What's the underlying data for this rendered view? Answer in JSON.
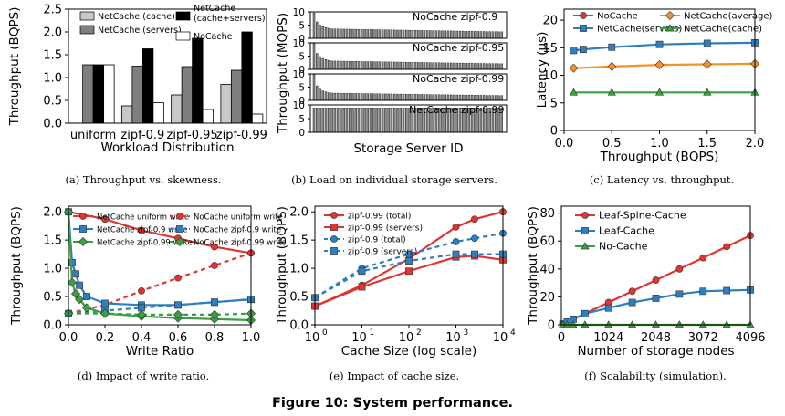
{
  "figure_title": "Figure 10: System performance.",
  "colors": {
    "red": "#e03530",
    "blue": "#2f7fc0",
    "orange": "#f4922a",
    "green": "#3aa040",
    "lightgray": "#c8c8c8",
    "darkgray": "#7f7f7f",
    "black": "#000000",
    "white": "#ffffff"
  },
  "chart_data": [
    {
      "id": "a",
      "type": "bar",
      "caption": "(a) Throughput vs. skewness.",
      "xlabel": "Workload Distribution",
      "ylabel": "Throughput (BQPS)",
      "ylim": [
        0,
        2.5
      ],
      "yticks": [
        "0.0",
        "0.5",
        "1.0",
        "1.5",
        "2.0",
        "2.5"
      ],
      "categories": [
        "uniform",
        "zipf-0.9",
        "zipf-0.95",
        "zipf-0.99"
      ],
      "series": [
        {
          "name": "NetCache (cache)",
          "color": "lightgray",
          "values": [
            0,
            0.38,
            0.62,
            0.85
          ]
        },
        {
          "name": "NetCache (servers)",
          "color": "darkgray",
          "values": [
            1.28,
            1.25,
            1.24,
            1.16
          ]
        },
        {
          "name": "NetCache (cache+servers)",
          "color": "black",
          "values": [
            1.28,
            1.63,
            1.86,
            2.0
          ]
        },
        {
          "name": "NoCache",
          "color": "white",
          "values": [
            1.28,
            0.45,
            0.3,
            0.2
          ]
        }
      ],
      "legend": [
        {
          "label": "NetCache (cache)",
          "color": "lightgray"
        },
        {
          "label": "NetCache (cache+servers)",
          "color": "black"
        },
        {
          "label": "NetCache (servers)",
          "color": "darkgray"
        },
        {
          "label": "NoCache",
          "color": "white"
        }
      ],
      "legend_position": "top"
    },
    {
      "id": "b",
      "type": "bar",
      "caption": "(b) Load on individual storage servers.",
      "xlabel": "Storage Server ID",
      "ylabel": "Throughput (MQPS)",
      "ylim": [
        0,
        10
      ],
      "yticks": [
        "0",
        "5",
        "10"
      ],
      "servers": 64,
      "panels": [
        {
          "label": "NoCache zipf-0.9",
          "head": [
            9.6,
            6.2,
            5.0,
            4.4,
            4.1,
            3.8
          ],
          "tail_start": 3.55,
          "tail_end": 2.45
        },
        {
          "label": "NoCache zipf-0.95",
          "head": [
            9.7,
            6.0,
            4.8,
            4.1,
            3.7,
            3.4
          ],
          "tail_start": 3.15,
          "tail_end": 2.1
        },
        {
          "label": "NoCache zipf-0.99",
          "head": [
            9.8,
            5.5,
            4.2,
            3.6,
            3.2,
            2.9
          ],
          "tail_start": 2.75,
          "tail_end": 1.8
        },
        {
          "label": "NetCache zipf-0.99",
          "head": [],
          "tail_start": 8.9,
          "tail_end": 8.9
        }
      ]
    },
    {
      "id": "c",
      "type": "line",
      "caption": "(c) Latency vs. throughput.",
      "xlabel": "Throughput (BQPS)",
      "ylabel": "Latency (μs)",
      "xlim": [
        0,
        2.0
      ],
      "ylim": [
        0,
        22
      ],
      "xticks": [
        "0.0",
        "0.5",
        "1.0",
        "1.5",
        "2.0"
      ],
      "yticks": [
        "0",
        "5",
        "10",
        "15",
        "20"
      ],
      "x": [
        0.1,
        0.2,
        0.5,
        1.0,
        1.5,
        2.0
      ],
      "series": [
        {
          "name": "NoCache",
          "color": "red",
          "marker": "circle",
          "x": [
            0.1,
            0.2
          ],
          "values": [
            14.5,
            14.7
          ]
        },
        {
          "name": "NetCache(servers)",
          "color": "blue",
          "marker": "square",
          "x": [
            0.1,
            0.2,
            0.5,
            1.0,
            1.5,
            2.0
          ],
          "values": [
            14.5,
            14.7,
            15.1,
            15.6,
            15.8,
            15.9
          ]
        },
        {
          "name": "NetCache(average)",
          "color": "orange",
          "marker": "diamond",
          "x": [
            0.1,
            0.5,
            1.0,
            1.5,
            2.0
          ],
          "values": [
            11.3,
            11.6,
            11.9,
            12.0,
            12.1
          ]
        },
        {
          "name": "NetCache(cache)",
          "color": "green",
          "marker": "triangle",
          "x": [
            0.1,
            0.5,
            1.0,
            1.5,
            2.0
          ],
          "values": [
            6.9,
            6.9,
            6.9,
            6.9,
            6.9
          ]
        }
      ],
      "legend": [
        {
          "label": "NoCache",
          "color": "red",
          "marker": "circle"
        },
        {
          "label": "NetCache(average)",
          "color": "orange",
          "marker": "diamond"
        },
        {
          "label": "NetCache(servers)",
          "color": "blue",
          "marker": "square"
        },
        {
          "label": "NetCache(cache)",
          "color": "green",
          "marker": "triangle"
        }
      ]
    },
    {
      "id": "d",
      "type": "line",
      "caption": "(d) Impact of write ratio.",
      "xlabel": "Write Ratio",
      "ylabel": "Throughput (BQPS)",
      "xlim": [
        0,
        1.0
      ],
      "ylim": [
        0,
        2.1
      ],
      "xticks": [
        "0.0",
        "0.2",
        "0.4",
        "0.6",
        "0.8",
        "1.0"
      ],
      "yticks": [
        "0.0",
        "0.5",
        "1.0",
        "1.5",
        "2.0"
      ],
      "series": [
        {
          "name": "NetCache uniform write",
          "color": "red",
          "marker": "circle",
          "dash": false,
          "x": [
            0,
            0.2,
            0.4,
            0.6,
            0.8,
            1.0
          ],
          "values": [
            2.0,
            1.87,
            1.67,
            1.53,
            1.38,
            1.27
          ]
        },
        {
          "name": "NoCache uniform write",
          "color": "red",
          "marker": "circle",
          "dash": true,
          "x": [
            0,
            0.2,
            0.4,
            0.6,
            0.8,
            1.0
          ],
          "values": [
            0.2,
            0.35,
            0.6,
            0.83,
            1.05,
            1.27
          ]
        },
        {
          "name": "NetCache zipf-0.9 write",
          "color": "blue",
          "marker": "square",
          "dash": false,
          "x": [
            0,
            0.02,
            0.04,
            0.06,
            0.1,
            0.2,
            0.4,
            0.6,
            0.8,
            1.0
          ],
          "values": [
            2.0,
            1.1,
            0.9,
            0.7,
            0.5,
            0.38,
            0.35,
            0.35,
            0.4,
            0.45
          ]
        },
        {
          "name": "NoCache zipf-0.9 write",
          "color": "blue",
          "marker": "square",
          "dash": true,
          "x": [
            0,
            0.2,
            0.4,
            0.6,
            0.8,
            1.0
          ],
          "values": [
            0.2,
            0.25,
            0.3,
            0.35,
            0.4,
            0.45
          ]
        },
        {
          "name": "NetCache zipf-0.99 write",
          "color": "green",
          "marker": "diamond",
          "dash": false,
          "x": [
            0,
            0.02,
            0.04,
            0.06,
            0.1,
            0.2,
            0.4,
            0.6,
            0.8,
            1.0
          ],
          "values": [
            2.0,
            0.75,
            0.55,
            0.45,
            0.3,
            0.2,
            0.15,
            0.12,
            0.1,
            0.08
          ]
        },
        {
          "name": "NoCache zipf-0.99 write",
          "color": "green",
          "marker": "diamond",
          "dash": true,
          "x": [
            0,
            0.2,
            0.4,
            0.6,
            0.8,
            1.0
          ],
          "values": [
            0.2,
            0.2,
            0.18,
            0.18,
            0.18,
            0.2
          ]
        }
      ],
      "legend": [
        {
          "label": "NetCache uniform write",
          "color": "red",
          "marker": "circle",
          "dash": false
        },
        {
          "label": "NoCache uniform write",
          "color": "red",
          "marker": "circle",
          "dash": true
        },
        {
          "label": "NetCache zipf-0.9 write",
          "color": "blue",
          "marker": "square",
          "dash": false
        },
        {
          "label": "NoCache zipf-0.9 write",
          "color": "blue",
          "marker": "square",
          "dash": true
        },
        {
          "label": "NetCache zipf-0.99 write",
          "color": "green",
          "marker": "diamond",
          "dash": false
        },
        {
          "label": "NoCache zipf-0.99 write",
          "color": "green",
          "marker": "diamond",
          "dash": true
        }
      ]
    },
    {
      "id": "e",
      "type": "line",
      "caption": "(e) Impact of cache size.",
      "xlabel": "Cache Size (log scale)",
      "ylabel": "Throughput (BQPS)",
      "xscale": "log",
      "xlim": [
        1,
        10000
      ],
      "ylim": [
        0,
        2.1
      ],
      "xticks": [
        {
          "base": "10",
          "exp": "0"
        },
        {
          "base": "10",
          "exp": "1"
        },
        {
          "base": "10",
          "exp": "2"
        },
        {
          "base": "10",
          "exp": "3"
        },
        {
          "base": "10",
          "exp": "4"
        }
      ],
      "yticks": [
        "0.0",
        "0.5",
        "1.0",
        "1.5",
        "2.0"
      ],
      "series": [
        {
          "name": "zipf-0.99 (total)",
          "color": "red",
          "marker": "circle",
          "dash": false,
          "x": [
            1,
            10,
            100,
            1000,
            2500,
            10000
          ],
          "values": [
            0.33,
            0.7,
            1.17,
            1.73,
            1.87,
            2.0
          ]
        },
        {
          "name": "zipf-0.99 (servers)",
          "color": "red",
          "marker": "square",
          "dash": false,
          "x": [
            1,
            10,
            100,
            1000,
            2500,
            10000
          ],
          "values": [
            0.33,
            0.67,
            0.95,
            1.2,
            1.22,
            1.15
          ]
        },
        {
          "name": "zipf-0.9 (total)",
          "color": "blue",
          "marker": "circle",
          "dash": true,
          "x": [
            1,
            10,
            100,
            1000,
            2500,
            10000
          ],
          "values": [
            0.48,
            1.0,
            1.25,
            1.47,
            1.53,
            1.62
          ]
        },
        {
          "name": "zipf-0.9 (servers)",
          "color": "blue",
          "marker": "square",
          "dash": true,
          "x": [
            1,
            10,
            100,
            1000,
            2500,
            10000
          ],
          "values": [
            0.48,
            0.95,
            1.13,
            1.25,
            1.25,
            1.25
          ]
        }
      ],
      "legend": [
        {
          "label": "zipf-0.99 (total)",
          "color": "red",
          "marker": "circle",
          "dash": false
        },
        {
          "label": "zipf-0.99 (servers)",
          "color": "red",
          "marker": "square",
          "dash": false
        },
        {
          "label": "zipf-0.9 (total)",
          "color": "blue",
          "marker": "circle",
          "dash": true
        },
        {
          "label": "zipf-0.9 (servers)",
          "color": "blue",
          "marker": "square",
          "dash": true
        }
      ]
    },
    {
      "id": "f",
      "type": "line",
      "caption": "(f) Scalability (simulation).",
      "xlabel": "Number of storage nodes",
      "ylabel": "Throughput (BQPS)",
      "xlim": [
        0,
        4096
      ],
      "ylim": [
        0,
        85
      ],
      "xticks": [
        "0",
        "1024",
        "2048",
        "3072",
        "4096"
      ],
      "yticks": [
        "0",
        "20",
        "40",
        "60",
        "80"
      ],
      "series": [
        {
          "name": "Leaf-Spine-Cache",
          "color": "red",
          "marker": "circle",
          "x": [
            32,
            128,
            256,
            512,
            1024,
            1536,
            2048,
            2560,
            3072,
            3584,
            4096
          ],
          "values": [
            0.5,
            2,
            4,
            8,
            16,
            24,
            32,
            40,
            48,
            56,
            64
          ]
        },
        {
          "name": "Leaf-Cache",
          "color": "blue",
          "marker": "square",
          "x": [
            32,
            128,
            256,
            512,
            1024,
            1536,
            2048,
            2560,
            3072,
            3584,
            4096
          ],
          "values": [
            0.5,
            2,
            4,
            8,
            12,
            16,
            19,
            22,
            24,
            24.5,
            25
          ]
        },
        {
          "name": "No-Cache",
          "color": "green",
          "marker": "triangle",
          "x": [
            32,
            128,
            256,
            512,
            1024,
            1536,
            2048,
            2560,
            3072,
            3584,
            4096
          ],
          "values": [
            0,
            0,
            0,
            0,
            0,
            0,
            0,
            0,
            0,
            0,
            0
          ]
        }
      ],
      "legend": [
        {
          "label": "Leaf-Spine-Cache",
          "color": "red",
          "marker": "circle"
        },
        {
          "label": "Leaf-Cache",
          "color": "blue",
          "marker": "square"
        },
        {
          "label": "No-Cache",
          "color": "green",
          "marker": "triangle"
        }
      ]
    }
  ]
}
